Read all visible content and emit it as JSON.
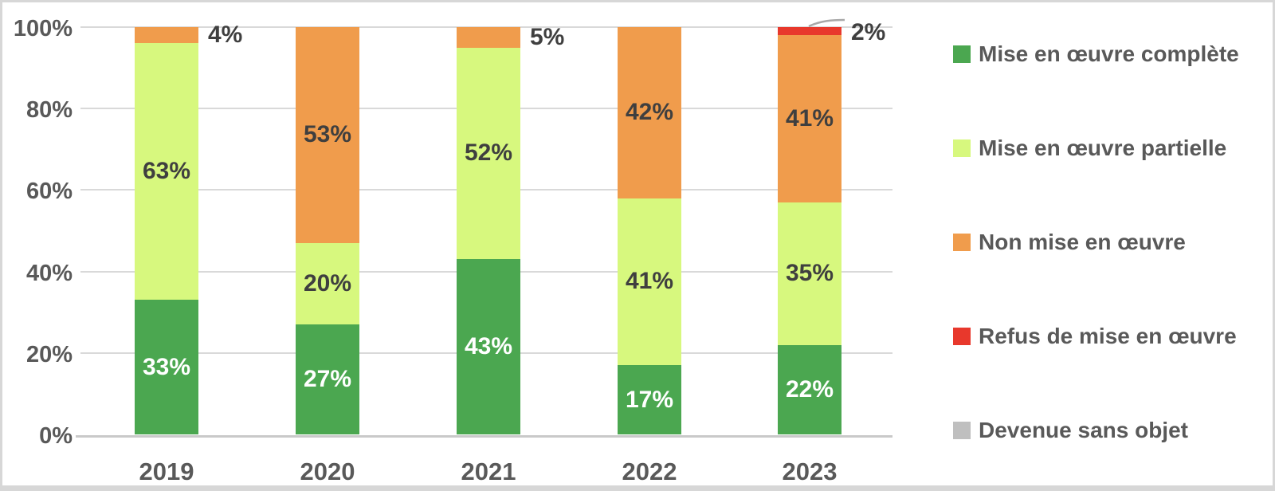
{
  "chart_data": {
    "type": "bar",
    "stacked": true,
    "percent_stacked": true,
    "unit": "%",
    "categories": [
      "2019",
      "2020",
      "2021",
      "2022",
      "2023"
    ],
    "series": [
      {
        "name": "Mise en œuvre complète",
        "color": "#4BA750",
        "label_color": "#ffffff",
        "values": [
          33,
          27,
          43,
          17,
          22
        ]
      },
      {
        "name": "Mise en œuvre partielle",
        "color": "#D7F87E",
        "label_color": "#3f3f3f",
        "values": [
          63,
          20,
          52,
          41,
          35
        ]
      },
      {
        "name": "Non mise en œuvre",
        "color": "#F09C4C",
        "label_color": "#3f3f3f",
        "values": [
          4,
          53,
          5,
          42,
          41
        ]
      },
      {
        "name": "Refus de mise en œuvre",
        "color": "#E8382C",
        "label_color": "#3f3f3f",
        "values": [
          0,
          0,
          0,
          0,
          2
        ]
      },
      {
        "name": "Devenue sans objet",
        "color": "#BFBFBF",
        "label_color": "#3f3f3f",
        "values": [
          0,
          0,
          0,
          0,
          0
        ]
      }
    ],
    "data_labels": {
      "2019": {
        "Mise en œuvre complète": "33%",
        "Mise en œuvre partielle": "63%",
        "Non mise en œuvre": "4%"
      },
      "2020": {
        "Mise en œuvre complète": "27%",
        "Mise en œuvre partielle": "20%",
        "Non mise en œuvre": "53%"
      },
      "2021": {
        "Mise en œuvre complète": "43%",
        "Mise en œuvre partielle": "52%",
        "Non mise en œuvre": "5%"
      },
      "2022": {
        "Mise en œuvre complète": "17%",
        "Mise en œuvre partielle": "41%",
        "Non mise en œuvre": "42%"
      },
      "2023": {
        "Mise en œuvre complète": "22%",
        "Mise en œuvre partielle": "35%",
        "Non mise en œuvre": "41%",
        "Refus de mise en œuvre": "2%"
      }
    },
    "y_axis": {
      "min": 0,
      "max": 100,
      "tick_step": 20,
      "tick_labels": [
        "0%",
        "20%",
        "40%",
        "60%",
        "80%",
        "100%"
      ]
    },
    "grid": true,
    "legend_position": "right"
  },
  "colors": {
    "axis_text": "#595959",
    "data_label_dark": "#3f3f3f",
    "data_label_light": "#ffffff",
    "gridline": "#d9d9d9",
    "axis_line": "#c9c9c9",
    "callout_line": "#a8a8a8",
    "background": "#ffffff",
    "frame_border": "#d7d7d7"
  }
}
